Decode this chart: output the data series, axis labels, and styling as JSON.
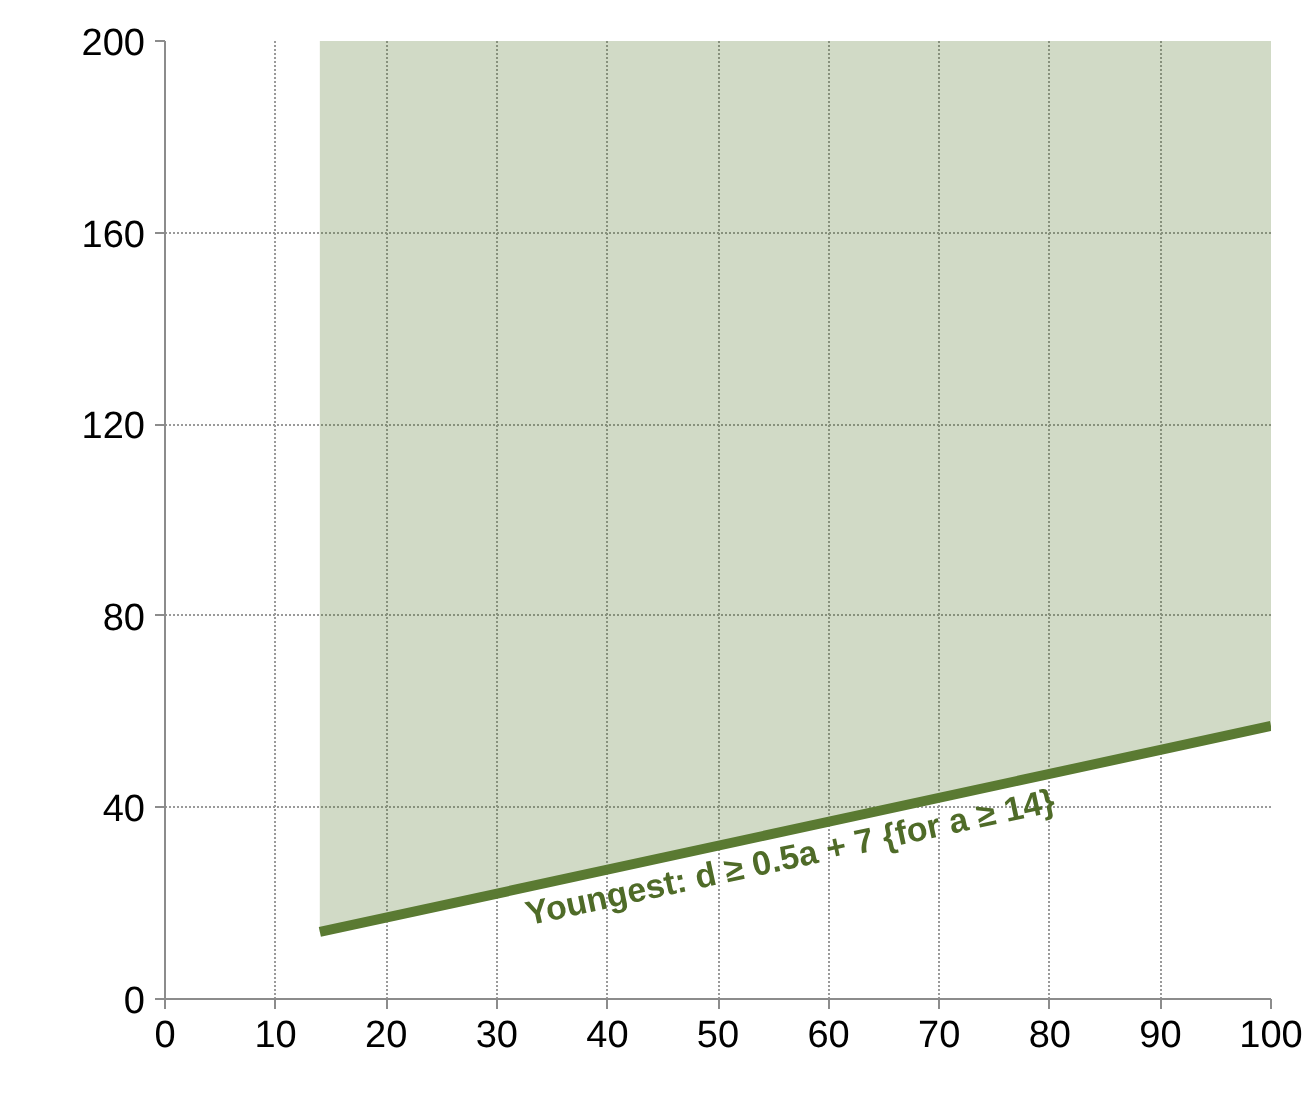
{
  "chart_data": {
    "type": "line",
    "xlim": [
      0,
      100
    ],
    "ylim": [
      0,
      200
    ],
    "xticks": [
      0,
      10,
      20,
      30,
      40,
      50,
      60,
      70,
      80,
      90,
      100
    ],
    "yticks": [
      0,
      40,
      80,
      120,
      160,
      200
    ],
    "grid": true,
    "marker": "none",
    "line_style": "solid",
    "series": [
      {
        "x": [
          14,
          100
        ],
        "values": [
          14,
          57
        ],
        "lower": [
          14,
          57
        ],
        "upper": [
          200,
          200
        ],
        "color": "#5a7a32"
      }
    ],
    "annotations": [
      {
        "text": "Youngest:  d ≥ 0.5a + 7  {for a ≥ 14}",
        "x": 57,
        "y": 35.5
      }
    ]
  }
}
